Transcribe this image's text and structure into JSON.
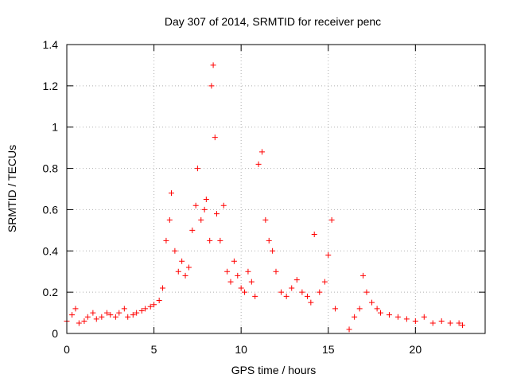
{
  "chart_data": {
    "type": "scatter",
    "title": "Day 307 of 2014, SRMTID for receiver penc",
    "xlabel": "GPS time / hours",
    "ylabel": "SRMTID / TECUs",
    "xlim": [
      0,
      24
    ],
    "ylim": [
      0,
      1.4
    ],
    "x_ticks": [
      0,
      5,
      10,
      15,
      20
    ],
    "x_tick_labels": [
      "0",
      "5",
      "10",
      "15",
      "20"
    ],
    "y_ticks": [
      0,
      0.2,
      0.4,
      0.6,
      0.8,
      1.0,
      1.2,
      1.4
    ],
    "y_tick_labels": [
      "0",
      "0.2",
      "0.4",
      "0.6",
      "0.8",
      "1",
      "1.2",
      "1.4"
    ],
    "grid": true,
    "marker": "+",
    "marker_color": "#ff0000",
    "series": [
      {
        "name": "SRMTID",
        "x": [
          0.0,
          0.3,
          0.5,
          0.7,
          1.0,
          1.2,
          1.5,
          1.7,
          2.0,
          2.3,
          2.5,
          2.8,
          3.0,
          3.3,
          3.5,
          3.8,
          4.0,
          4.3,
          4.5,
          4.8,
          5.0,
          5.3,
          5.5,
          5.7,
          5.9,
          6.0,
          6.2,
          6.4,
          6.6,
          6.8,
          7.0,
          7.2,
          7.4,
          7.5,
          7.7,
          7.9,
          8.0,
          8.2,
          8.3,
          8.4,
          8.5,
          8.6,
          8.8,
          9.0,
          9.2,
          9.4,
          9.6,
          9.8,
          10.0,
          10.2,
          10.4,
          10.6,
          10.8,
          11.0,
          11.2,
          11.4,
          11.6,
          11.8,
          12.0,
          12.3,
          12.6,
          12.9,
          13.2,
          13.5,
          13.8,
          14.0,
          14.2,
          14.5,
          14.8,
          15.0,
          15.2,
          15.4,
          16.2,
          16.5,
          16.8,
          17.0,
          17.2,
          17.5,
          17.8,
          18.0,
          18.5,
          19.0,
          19.5,
          20.0,
          20.5,
          21.0,
          21.5,
          22.0,
          22.5,
          22.7
        ],
        "y": [
          0.06,
          0.09,
          0.12,
          0.05,
          0.06,
          0.08,
          0.1,
          0.07,
          0.08,
          0.1,
          0.09,
          0.08,
          0.1,
          0.12,
          0.08,
          0.09,
          0.1,
          0.11,
          0.12,
          0.13,
          0.14,
          0.16,
          0.22,
          0.45,
          0.55,
          0.68,
          0.4,
          0.3,
          0.35,
          0.28,
          0.32,
          0.5,
          0.62,
          0.8,
          0.55,
          0.6,
          0.65,
          0.45,
          1.2,
          1.3,
          0.95,
          0.58,
          0.45,
          0.62,
          0.3,
          0.25,
          0.35,
          0.28,
          0.22,
          0.2,
          0.3,
          0.25,
          0.18,
          0.82,
          0.88,
          0.55,
          0.45,
          0.4,
          0.3,
          0.2,
          0.18,
          0.22,
          0.26,
          0.2,
          0.18,
          0.15,
          0.48,
          0.2,
          0.25,
          0.38,
          0.55,
          0.12,
          0.02,
          0.08,
          0.12,
          0.28,
          0.2,
          0.15,
          0.12,
          0.1,
          0.09,
          0.08,
          0.07,
          0.06,
          0.08,
          0.05,
          0.06,
          0.05,
          0.05,
          0.04
        ]
      }
    ]
  }
}
